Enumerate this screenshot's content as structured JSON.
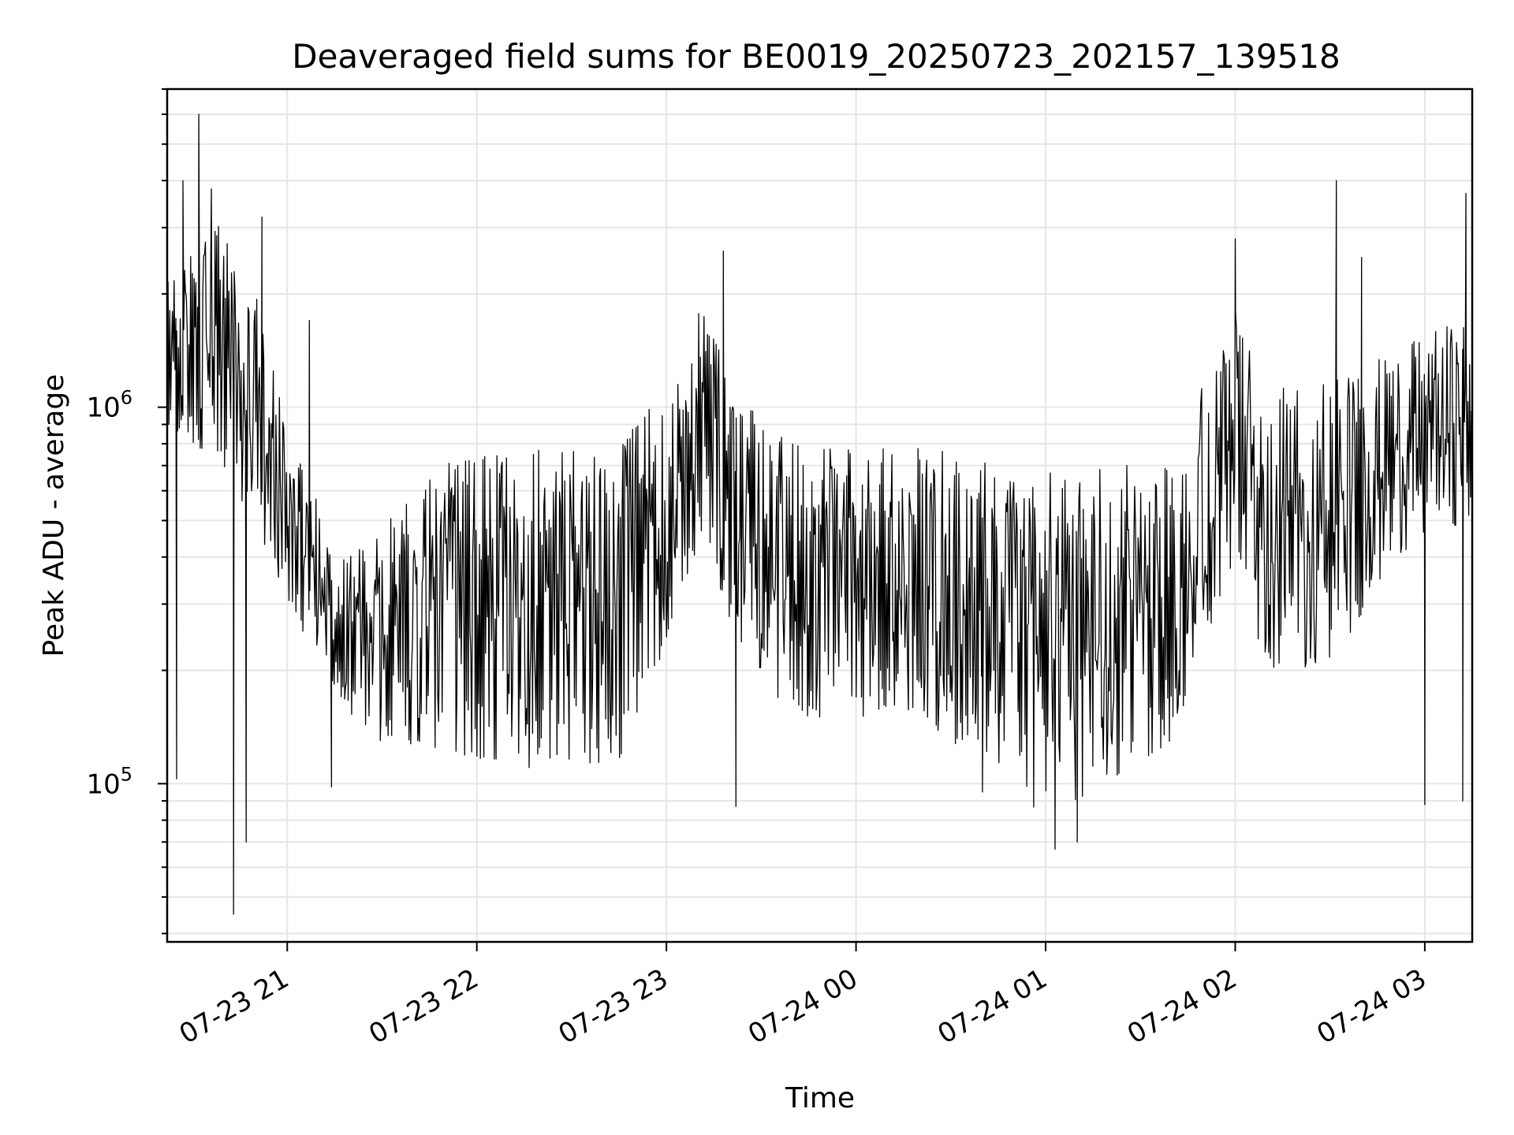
{
  "chart_data": {
    "type": "line",
    "title": "Deaveraged field sums for BE0019_20250723_202157_139518",
    "xlabel": "Time",
    "ylabel": "Peak ADU - average",
    "yscale": "log",
    "ylim": [
      38000,
      7000000
    ],
    "xlim": [
      "2025-07-23 20:22",
      "2025-07-24 03:15"
    ],
    "x_ticks": [
      {
        "value": "2025-07-23 21:00",
        "label": "07-23 21"
      },
      {
        "value": "2025-07-23 22:00",
        "label": "07-23 22"
      },
      {
        "value": "2025-07-23 23:00",
        "label": "07-23 23"
      },
      {
        "value": "2025-07-24 00:00",
        "label": "07-24 00"
      },
      {
        "value": "2025-07-24 01:00",
        "label": "07-24 01"
      },
      {
        "value": "2025-07-24 02:00",
        "label": "07-24 02"
      },
      {
        "value": "2025-07-24 03:00",
        "label": "07-24 03"
      }
    ],
    "y_ticks": [
      {
        "value": 100000,
        "label_base": "10",
        "label_exp": "5"
      },
      {
        "value": 1000000,
        "label_base": "10",
        "label_exp": "6"
      }
    ],
    "grid": true,
    "series": [
      {
        "color": "#000000",
        "profile": [
          {
            "x": "2025-07-23 20:22",
            "low": 900000,
            "high": 2200000
          },
          {
            "x": "2025-07-23 20:40",
            "low": 700000,
            "high": 3200000
          },
          {
            "x": "2025-07-23 20:50",
            "low": 450000,
            "high": 2000000
          },
          {
            "x": "2025-07-23 21:00",
            "low": 300000,
            "high": 900000
          },
          {
            "x": "2025-07-23 21:12",
            "low": 200000,
            "high": 500000
          },
          {
            "x": "2025-07-23 21:25",
            "low": 130000,
            "high": 420000
          },
          {
            "x": "2025-07-23 21:45",
            "low": 125000,
            "high": 700000
          },
          {
            "x": "2025-07-23 22:15",
            "low": 110000,
            "high": 780000
          },
          {
            "x": "2025-07-23 22:45",
            "low": 115000,
            "high": 800000
          },
          {
            "x": "2025-07-23 23:05",
            "low": 300000,
            "high": 1300000
          },
          {
            "x": "2025-07-23 23:12",
            "low": 500000,
            "high": 2000000
          },
          {
            "x": "2025-07-23 23:20",
            "low": 250000,
            "high": 1100000
          },
          {
            "x": "2025-07-23 23:40",
            "low": 150000,
            "high": 800000
          },
          {
            "x": "2025-07-24 00:00",
            "low": 150000,
            "high": 800000
          },
          {
            "x": "2025-07-24 00:20",
            "low": 140000,
            "high": 800000
          },
          {
            "x": "2025-07-24 00:45",
            "low": 110000,
            "high": 700000
          },
          {
            "x": "2025-07-24 01:00",
            "low": 80000,
            "high": 700000
          },
          {
            "x": "2025-07-24 01:15",
            "low": 95000,
            "high": 700000
          },
          {
            "x": "2025-07-24 01:40",
            "low": 130000,
            "high": 780000
          },
          {
            "x": "2025-07-24 02:00",
            "low": 400000,
            "high": 1800000
          },
          {
            "x": "2025-07-24 02:10",
            "low": 200000,
            "high": 1100000
          },
          {
            "x": "2025-07-24 02:30",
            "low": 200000,
            "high": 1200000
          },
          {
            "x": "2025-07-24 02:50",
            "low": 400000,
            "high": 1400000
          },
          {
            "x": "2025-07-24 03:15",
            "low": 500000,
            "high": 1800000
          }
        ],
        "spikes": [
          {
            "x": "2025-07-23 20:32",
            "y": 6000000
          },
          {
            "x": "2025-07-23 20:27",
            "y": 4000000
          },
          {
            "x": "2025-07-23 20:36",
            "y": 3800000
          },
          {
            "x": "2025-07-23 20:25",
            "y": 103000
          },
          {
            "x": "2025-07-23 20:43",
            "y": 45000
          },
          {
            "x": "2025-07-23 20:47",
            "y": 70000
          },
          {
            "x": "2025-07-23 20:52",
            "y": 3200000
          },
          {
            "x": "2025-07-23 21:07",
            "y": 1700000
          },
          {
            "x": "2025-07-23 21:14",
            "y": 98000
          },
          {
            "x": "2025-07-23 23:18",
            "y": 2600000
          },
          {
            "x": "2025-07-23 23:22",
            "y": 87000
          },
          {
            "x": "2025-07-24 00:40",
            "y": 95000
          },
          {
            "x": "2025-07-24 01:03",
            "y": 67000
          },
          {
            "x": "2025-07-24 01:10",
            "y": 70000
          },
          {
            "x": "2025-07-24 02:00",
            "y": 2800000
          },
          {
            "x": "2025-07-24 02:32",
            "y": 4000000
          },
          {
            "x": "2025-07-24 02:40",
            "y": 2500000
          },
          {
            "x": "2025-07-24 03:00",
            "y": 88000
          },
          {
            "x": "2025-07-24 03:13",
            "y": 3700000
          },
          {
            "x": "2025-07-24 03:12",
            "y": 90000
          }
        ]
      }
    ]
  }
}
